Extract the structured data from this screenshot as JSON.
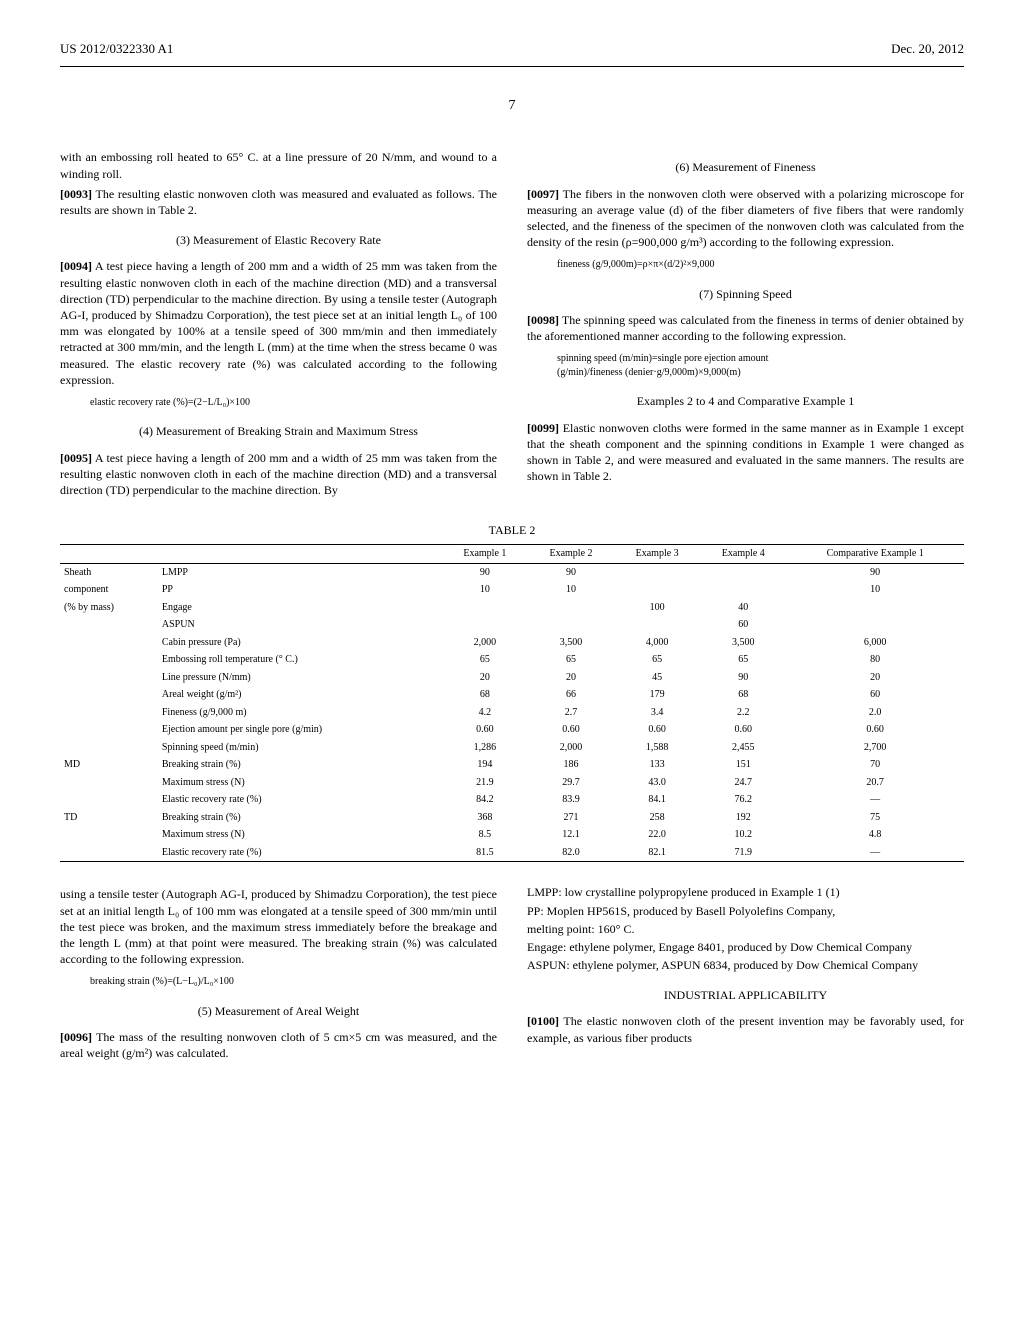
{
  "header": {
    "left": "US 2012/0322330 A1",
    "right": "Dec. 20, 2012"
  },
  "page_number": "7",
  "left_col": {
    "p1": "with an embossing roll heated to 65° C. at a line pressure of 20 N/mm, and wound to a winding roll.",
    "p2_num": "[0093]",
    "p2": " The resulting elastic nonwoven cloth was measured and evaluated as follows. The results are shown in Table 2.",
    "h1": "(3) Measurement of Elastic Recovery Rate",
    "p3_num": "[0094]",
    "p3": " A test piece having a length of 200 mm and a width of 25 mm was taken from the resulting elastic nonwoven cloth in each of the machine direction (MD) and a transversal direction (TD) perpendicular to the machine direction. By using a tensile tester (Autograph AG-I, produced by Shimadzu Corporation), the test piece set at an initial length L₀ of 100 mm was elongated by 100% at a tensile speed of 300 mm/min and then immediately retracted at 300 mm/min, and the length L (mm) at the time when the stress became 0 was measured. The elastic recovery rate (%) was calculated according to the following expression.",
    "f1": "elastic recovery rate (%)=(2−L/L₀)×100",
    "h2": "(4) Measurement of Breaking Strain and Maximum Stress",
    "p4_num": "[0095]",
    "p4": " A test piece having a length of 200 mm and a width of 25 mm was taken from the resulting elastic nonwoven cloth in each of the machine direction (MD) and a transversal direction (TD) perpendicular to the machine direction. By"
  },
  "right_col": {
    "h1": "(6) Measurement of Fineness",
    "p1_num": "[0097]",
    "p1": " The fibers in the nonwoven cloth were observed with a polarizing microscope for measuring an average value (d) of the fiber diameters of five fibers that were randomly selected, and the fineness of the specimen of the nonwoven cloth was calculated from the density of the resin (ρ=900,000 g/m³) according to the following expression.",
    "f1": "fineness (g/9,000m)=ρ×π×(d/2)²×9,000",
    "h2": "(7) Spinning Speed",
    "p2_num": "[0098]",
    "p2": " The spinning speed was calculated from the fineness in terms of denier obtained by the aforementioned manner according to the following expression.",
    "f2a": "spinning speed (m/min)=single pore ejection amount",
    "f2b": "(g/min)/fineness (denier·g/9,000m)×9,000(m)",
    "h3": "Examples 2 to 4 and Comparative Example 1",
    "p3_num": "[0099]",
    "p3": " Elastic nonwoven cloths were formed in the same manner as in Example 1 except that the sheath component and the spinning conditions in Example 1 were changed as shown in Table 2, and were measured and evaluated in the same manners. The results are shown in Table 2."
  },
  "table": {
    "title": "TABLE 2",
    "headers": [
      "",
      "",
      "Example 1",
      "Example 2",
      "Example 3",
      "Example 4",
      "Comparative Example 1"
    ],
    "rows": [
      [
        "Sheath",
        "LMPP",
        "90",
        "90",
        "",
        "",
        "90"
      ],
      [
        "component",
        "PP",
        "10",
        "10",
        "",
        "",
        "10"
      ],
      [
        "(% by mass)",
        "Engage",
        "",
        "",
        "100",
        "40",
        ""
      ],
      [
        "",
        "ASPUN",
        "",
        "",
        "",
        "60",
        ""
      ],
      [
        "",
        "Cabin pressure (Pa)",
        "2,000",
        "3,500",
        "4,000",
        "3,500",
        "6,000"
      ],
      [
        "",
        "Embossing roll temperature (° C.)",
        "65",
        "65",
        "65",
        "65",
        "80"
      ],
      [
        "",
        "Line pressure (N/mm)",
        "20",
        "20",
        "45",
        "90",
        "20"
      ],
      [
        "",
        "Areal weight (g/m²)",
        "68",
        "66",
        "179",
        "68",
        "60"
      ],
      [
        "",
        "Fineness (g/9,000 m)",
        "4.2",
        "2.7",
        "3.4",
        "2.2",
        "2.0"
      ],
      [
        "",
        "Ejection amount per single pore (g/min)",
        "0.60",
        "0.60",
        "0.60",
        "0.60",
        "0.60"
      ],
      [
        "",
        "Spinning speed (m/min)",
        "1,286",
        "2,000",
        "1,588",
        "2,455",
        "2,700"
      ],
      [
        "MD",
        "Breaking strain (%)",
        "194",
        "186",
        "133",
        "151",
        "70"
      ],
      [
        "",
        "Maximum stress (N)",
        "21.9",
        "29.7",
        "43.0",
        "24.7",
        "20.7"
      ],
      [
        "",
        "Elastic recovery rate (%)",
        "84.2",
        "83.9",
        "84.1",
        "76.2",
        "—"
      ],
      [
        "TD",
        "Breaking strain (%)",
        "368",
        "271",
        "258",
        "192",
        "75"
      ],
      [
        "",
        "Maximum stress (N)",
        "8.5",
        "12.1",
        "22.0",
        "10.2",
        "4.8"
      ],
      [
        "",
        "Elastic recovery rate (%)",
        "81.5",
        "82.0",
        "82.1",
        "71.9",
        "—"
      ]
    ]
  },
  "left_col2": {
    "p1": "using a tensile tester (Autograph AG-I, produced by Shimadzu Corporation), the test piece set at an initial length L₀ of 100 mm was elongated at a tensile speed of 300 mm/min until the test piece was broken, and the maximum stress immediately before the breakage and the length L (mm) at that point were measured. The breaking strain (%) was calculated according to the following expression.",
    "f1": "breaking strain (%)=(L−L₀)/L₀×100",
    "h1": "(5) Measurement of Areal Weight",
    "p2_num": "[0096]",
    "p2": " The mass of the resulting nonwoven cloth of 5 cm×5 cm was measured, and the areal weight (g/m²) was calculated."
  },
  "right_col2": {
    "n1": "LMPP: low crystalline polypropylene produced in Example 1 (1)",
    "n2": "PP: Moplen HP561S, produced by Basell Polyolefins Company,",
    "n3": "melting point: 160° C.",
    "n4": "Engage: ethylene polymer, Engage 8401, produced by Dow Chemical Company",
    "n5": "ASPUN: ethylene polymer, ASPUN 6834, produced by Dow Chemical Company",
    "h1": "INDUSTRIAL APPLICABILITY",
    "p1_num": "[0100]",
    "p1": " The elastic nonwoven cloth of the present invention may be favorably used, for example, as various fiber products"
  }
}
